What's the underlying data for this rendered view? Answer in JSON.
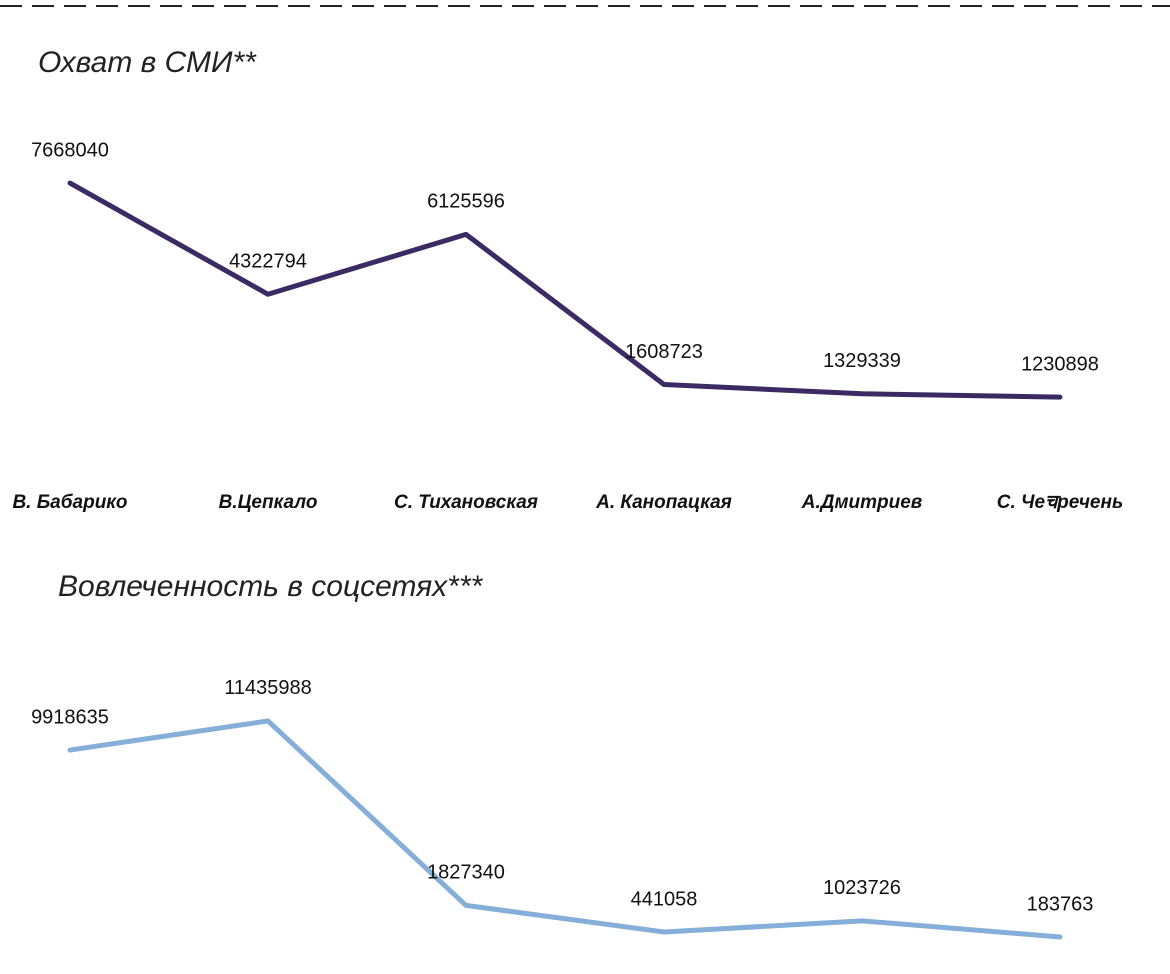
{
  "chart_data": [
    {
      "type": "line",
      "title": "Охват в СМИ**",
      "categories": [
        "В. Бабарико",
        "В.Цепкало",
        "С. Тихановская",
        "А. Канопацкая",
        "А.Дмитриев",
        "С. Чеचречень"
      ],
      "values": [
        7668040,
        4322794,
        6125596,
        1608723,
        1329339,
        1230898
      ],
      "color": "#3b2a63"
    },
    {
      "type": "line",
      "title": "Вовлеченность в соцсетях***",
      "values": [
        9918635,
        11435988,
        1827340,
        441058,
        1023726,
        183763
      ],
      "color": "#85aed8"
    }
  ]
}
